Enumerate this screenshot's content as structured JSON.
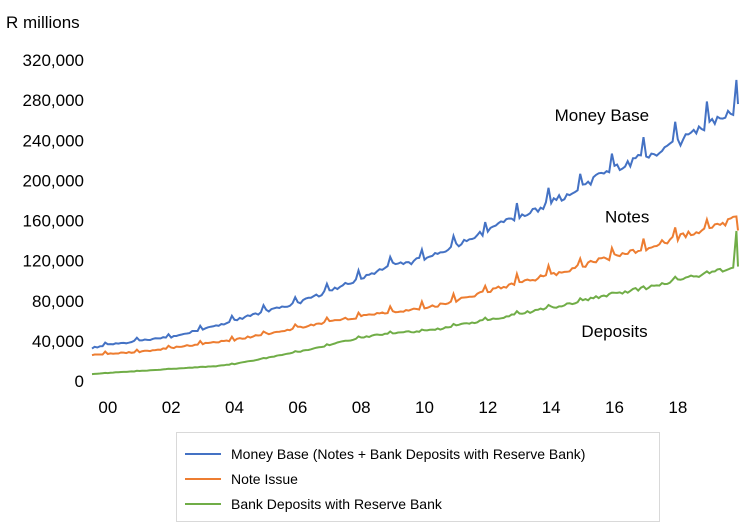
{
  "chart_data": {
    "type": "line",
    "unit_label": "R millions",
    "ylim": [
      0,
      320000
    ],
    "yticks": [
      0,
      40000,
      80000,
      120000,
      160000,
      200000,
      240000,
      280000,
      320000
    ],
    "ytick_labels": [
      "0",
      "40,000",
      "80,000",
      "120,000",
      "160,000",
      "200,000",
      "240,000",
      "280,000",
      "320,000"
    ],
    "xlim": [
      1999.5,
      2019.9
    ],
    "xticks": [
      2000,
      2002,
      2004,
      2006,
      2008,
      2010,
      2012,
      2014,
      2016,
      2018
    ],
    "xtick_labels": [
      "00",
      "02",
      "04",
      "06",
      "08",
      "10",
      "12",
      "14",
      "16",
      "18"
    ],
    "grid": false,
    "legend_position": "bottom",
    "annotations": [
      {
        "text": "Money Base",
        "x": 2015.6,
        "y": 259000
      },
      {
        "text": "Notes",
        "x": 2016.4,
        "y": 158000
      },
      {
        "text": "Deposits",
        "x": 2016.0,
        "y": 44000
      }
    ],
    "series": [
      {
        "name": "Money Base (Notes + Bank Deposits with Reserve Bank)",
        "color": "#4472c4",
        "x": [
          1999.5,
          2000,
          2000.5,
          2001,
          2001.5,
          2002,
          2002.5,
          2003,
          2003.5,
          2004,
          2004.5,
          2005,
          2005.5,
          2006,
          2006.5,
          2007,
          2007.5,
          2008,
          2008.5,
          2009,
          2009.5,
          2010,
          2010.5,
          2011,
          2011.5,
          2012,
          2012.5,
          2013,
          2013.5,
          2014,
          2014.5,
          2015,
          2015.5,
          2016,
          2016.5,
          2017,
          2017.5,
          2018,
          2018.5,
          2019,
          2019.5,
          2019.75,
          2019.85,
          2019.9
        ],
        "values": [
          33000,
          36000,
          38000,
          40000,
          42000,
          44000,
          48000,
          52000,
          55000,
          60000,
          65000,
          70000,
          73000,
          78000,
          84000,
          90000,
          96000,
          102000,
          110000,
          116000,
          118000,
          122000,
          128000,
          135000,
          142000,
          150000,
          158000,
          163000,
          170000,
          178000,
          186000,
          195000,
          204000,
          212000,
          218000,
          224000,
          230000,
          238000,
          246000,
          255000,
          263000,
          270000,
          302000,
          276000
        ]
      },
      {
        "name": "Note Issue",
        "color": "#ed7d31",
        "x": [
          1999.5,
          2000,
          2000.5,
          2001,
          2001.5,
          2002,
          2002.5,
          2003,
          2003.5,
          2004,
          2004.5,
          2005,
          2005.5,
          2006,
          2006.5,
          2007,
          2007.5,
          2008,
          2008.5,
          2009,
          2009.5,
          2010,
          2010.5,
          2011,
          2011.5,
          2012,
          2012.5,
          2013,
          2013.5,
          2014,
          2014.5,
          2015,
          2015.5,
          2016,
          2016.5,
          2017,
          2017.5,
          2018,
          2018.5,
          2019,
          2019.5,
          2019.75,
          2019.85,
          2019.9
        ],
        "values": [
          26000,
          27000,
          28000,
          29000,
          31000,
          33000,
          35000,
          37000,
          39000,
          41000,
          44000,
          47000,
          50000,
          53000,
          56000,
          59000,
          62000,
          64000,
          67000,
          69000,
          71000,
          73000,
          76000,
          80000,
          85000,
          89000,
          94000,
          98000,
          102000,
          106000,
          110000,
          115000,
          120000,
          124000,
          128000,
          132000,
          138000,
          143000,
          148000,
          152000,
          157000,
          161000,
          164000,
          150000
        ]
      },
      {
        "name": "Bank Deposits with Reserve Bank",
        "color": "#70ad47",
        "x": [
          1999.5,
          2000,
          2000.5,
          2001,
          2001.5,
          2002,
          2002.5,
          2003,
          2003.5,
          2004,
          2004.5,
          2005,
          2005.5,
          2006,
          2006.5,
          2007,
          2007.5,
          2008,
          2008.5,
          2009,
          2009.5,
          2010,
          2010.5,
          2011,
          2011.5,
          2012,
          2012.5,
          2013,
          2013.5,
          2014,
          2014.5,
          2015,
          2015.5,
          2016,
          2016.5,
          2017,
          2017.5,
          2018,
          2018.5,
          2019,
          2019.5,
          2019.75,
          2019.85,
          2019.9
        ],
        "values": [
          7000,
          8000,
          9000,
          10000,
          11000,
          12000,
          13000,
          14000,
          15000,
          17000,
          20000,
          23000,
          26000,
          29000,
          32000,
          36000,
          40000,
          43000,
          46000,
          48000,
          49000,
          50000,
          52000,
          55000,
          58000,
          61000,
          64000,
          67000,
          70000,
          73000,
          77000,
          80000,
          84000,
          87000,
          90000,
          93000,
          97000,
          101000,
          104000,
          108000,
          111000,
          113000,
          148000,
          114000
        ]
      }
    ]
  }
}
